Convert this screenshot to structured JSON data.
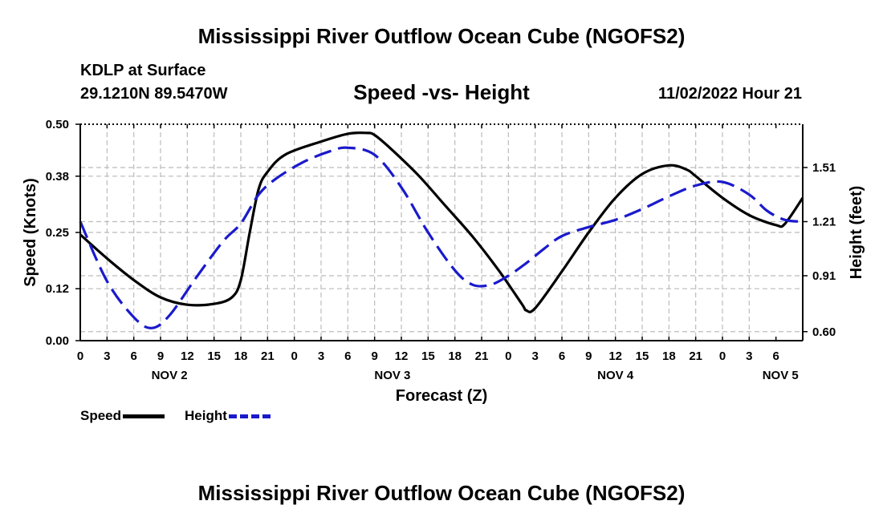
{
  "page": {
    "title": "Mississippi River Outflow Ocean Cube (NGOFS2)",
    "title_repeat": "Mississippi River Outflow Ocean Cube (NGOFS2)",
    "station": "KDLP at Surface",
    "coords": "29.1210N  89.5470W",
    "subtitle": "Speed -vs- Height",
    "datetime": "11/02/2022 Hour 21"
  },
  "legend": {
    "speed_label": "Speed",
    "height_label": "Height"
  },
  "colors": {
    "speed": "#000000",
    "height": "#1a1acc",
    "grid": "#bbbbbb"
  },
  "chart_data": {
    "type": "line",
    "xlabel": "Forecast (Z)",
    "ylabel": "Speed (Knots)",
    "y2label": "Height (feet)",
    "x_range_hours": [
      0,
      81
    ],
    "x_tick_step_hours": 3,
    "x_tick_labels": [
      "0",
      "3",
      "6",
      "9",
      "12",
      "15",
      "18",
      "21",
      "0",
      "3",
      "6",
      "9",
      "12",
      "15",
      "18",
      "21",
      "0",
      "3",
      "6",
      "9",
      "12",
      "15",
      "18",
      "21",
      "0",
      "3",
      "6"
    ],
    "day_labels": [
      {
        "label": "NOV 2",
        "hour": 10
      },
      {
        "label": "NOV 3",
        "hour": 35
      },
      {
        "label": "NOV 4",
        "hour": 60
      },
      {
        "label": "NOV 5",
        "hour": 78.5
      }
    ],
    "ylim": [
      0,
      0.5
    ],
    "y_ticks": [
      0.0,
      0.12,
      0.25,
      0.38,
      0.5
    ],
    "y_tick_labels": [
      "0.00",
      "0.12",
      "0.25",
      "0.38",
      "0.50"
    ],
    "y2lim": [
      0.55,
      1.75
    ],
    "y2_ticks": [
      0.6,
      0.91,
      1.21,
      1.51
    ],
    "y2_tick_labels": [
      "0.60",
      "0.91",
      "1.21",
      "1.51"
    ],
    "grid": true,
    "series": [
      {
        "name": "Speed",
        "axis": "left",
        "style": "solid",
        "x": [
          0,
          3,
          6,
          9,
          12,
          15,
          17,
          18,
          19,
          20,
          21,
          23,
          27,
          30,
          32,
          33,
          35,
          38,
          41,
          44,
          47,
          49.5,
          50,
          51,
          54,
          57,
          60,
          63,
          66,
          68,
          69,
          72,
          75,
          78,
          79,
          81
        ],
        "values": [
          0.245,
          0.19,
          0.14,
          0.1,
          0.083,
          0.085,
          0.1,
          0.14,
          0.25,
          0.35,
          0.39,
          0.43,
          0.46,
          0.478,
          0.48,
          0.475,
          0.44,
          0.38,
          0.31,
          0.24,
          0.16,
          0.085,
          0.07,
          0.075,
          0.16,
          0.25,
          0.33,
          0.385,
          0.405,
          0.395,
          0.38,
          0.33,
          0.29,
          0.267,
          0.27,
          0.33
        ]
      },
      {
        "name": "Height",
        "axis": "right",
        "style": "dashed",
        "x": [
          0,
          3,
          6,
          8,
          10,
          13,
          16,
          18,
          20,
          22,
          25,
          28,
          30,
          33,
          36,
          39,
          42,
          44,
          46,
          48,
          50,
          52,
          54,
          57,
          60,
          63,
          66,
          69,
          72,
          75,
          77,
          79,
          81
        ],
        "values": [
          1.21,
          0.88,
          0.68,
          0.62,
          0.69,
          0.9,
          1.1,
          1.2,
          1.36,
          1.45,
          1.54,
          1.6,
          1.62,
          1.58,
          1.4,
          1.15,
          0.94,
          0.86,
          0.86,
          0.91,
          0.98,
          1.06,
          1.13,
          1.18,
          1.22,
          1.28,
          1.35,
          1.41,
          1.43,
          1.36,
          1.27,
          1.22,
          1.21
        ]
      }
    ]
  }
}
